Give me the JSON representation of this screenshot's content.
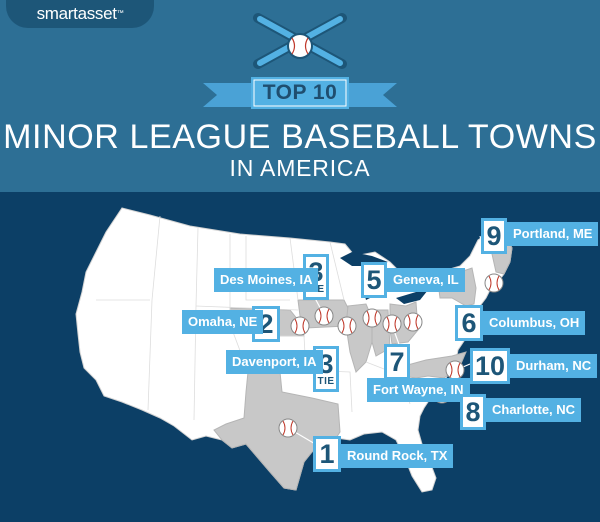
{
  "header": {
    "logo": "smartasset",
    "logo_mark": "™",
    "badge": "TOP 10",
    "title": "MINOR LEAGUE BASEBALL TOWNS",
    "subtitle": "IN AMERICA"
  },
  "icons": [
    "crossed-bats-icon",
    "baseball-icon"
  ],
  "colors": {
    "header_bg": "#2d6f95",
    "map_bg": "#0c3f66",
    "accent": "#53b1e3",
    "land": "#ffffff",
    "highlight_states": "#c8c8c8"
  },
  "markers": [
    {
      "rank": "1",
      "tie": "",
      "city": "Round Rock, TX"
    },
    {
      "rank": "2",
      "tie": "",
      "city": "Omaha, NE"
    },
    {
      "rank": "3",
      "tie": "TIE",
      "city": "Des Moines, IA"
    },
    {
      "rank": "3",
      "tie": "TIE",
      "city": "Davenport, IA"
    },
    {
      "rank": "5",
      "tie": "",
      "city": "Geneva, IL"
    },
    {
      "rank": "6",
      "tie": "",
      "city": "Columbus, OH"
    },
    {
      "rank": "7",
      "tie": "",
      "city": "Fort Wayne, IN"
    },
    {
      "rank": "8",
      "tie": "",
      "city": "Charlotte, NC"
    },
    {
      "rank": "9",
      "tie": "",
      "city": "Portland, ME"
    },
    {
      "rank": "10",
      "tie": "",
      "city": "Durham, NC"
    }
  ]
}
